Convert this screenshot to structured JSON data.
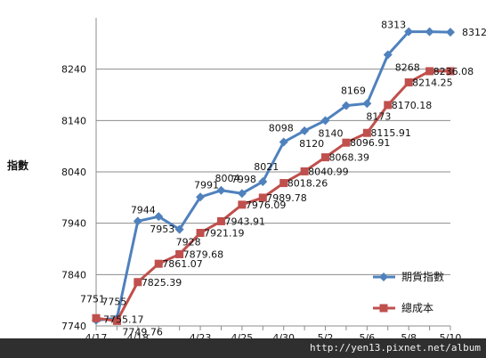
{
  "chart_data": {
    "type": "line",
    "categories": [
      "4/17",
      "",
      "4/18",
      "",
      "",
      "4/23",
      "",
      "4/25",
      "",
      "4/30",
      "",
      "5/2",
      "",
      "5/6",
      "",
      "5/8",
      "",
      "5/10"
    ],
    "ylabel": "指數",
    "ylim": [
      7740,
      8340
    ],
    "yticks": [
      7740,
      7840,
      7940,
      8040,
      8140,
      8240
    ],
    "grid": true,
    "legend_placement": "bottom-right",
    "series": [
      {
        "name": "期貨指數",
        "color": "#4f81bd",
        "marker": "diamond",
        "values": [
          7751,
          7755,
          7944,
          7953,
          7928,
          7991,
          8004,
          7998,
          8021,
          8098,
          8120,
          8140,
          8169,
          8173,
          8268,
          8313,
          8313,
          8312
        ],
        "labels": [
          "7751",
          "7755",
          "7944",
          "7953",
          "7928",
          "7991",
          "8004",
          "7998",
          "8021",
          "8098",
          "8120",
          "8140",
          "8169",
          "8173",
          "8268",
          "8313",
          "",
          "8312"
        ]
      },
      {
        "name": "總成本",
        "color": "#c0504d",
        "marker": "square",
        "values": [
          7755.17,
          7749.76,
          7825.39,
          7861.07,
          7879.68,
          7921.19,
          7943.91,
          7976.09,
          7989.78,
          8018.26,
          8040.99,
          8068.39,
          8096.91,
          8115.91,
          8170.18,
          8214.25,
          8236.08,
          8236.08
        ],
        "labels": [
          "7755.17",
          "7749.76",
          "7825.39",
          "7861.07",
          "7879.68",
          "7921.19",
          "7943.91",
          "7976.09",
          "7989.78",
          "8018.26",
          "8040.99",
          "8068.39",
          "8096.91",
          "8115.91",
          "8170.18",
          "8214.25",
          "8236.08",
          ""
        ]
      }
    ]
  },
  "watermark": "http://yen13.pixnet.net/album"
}
